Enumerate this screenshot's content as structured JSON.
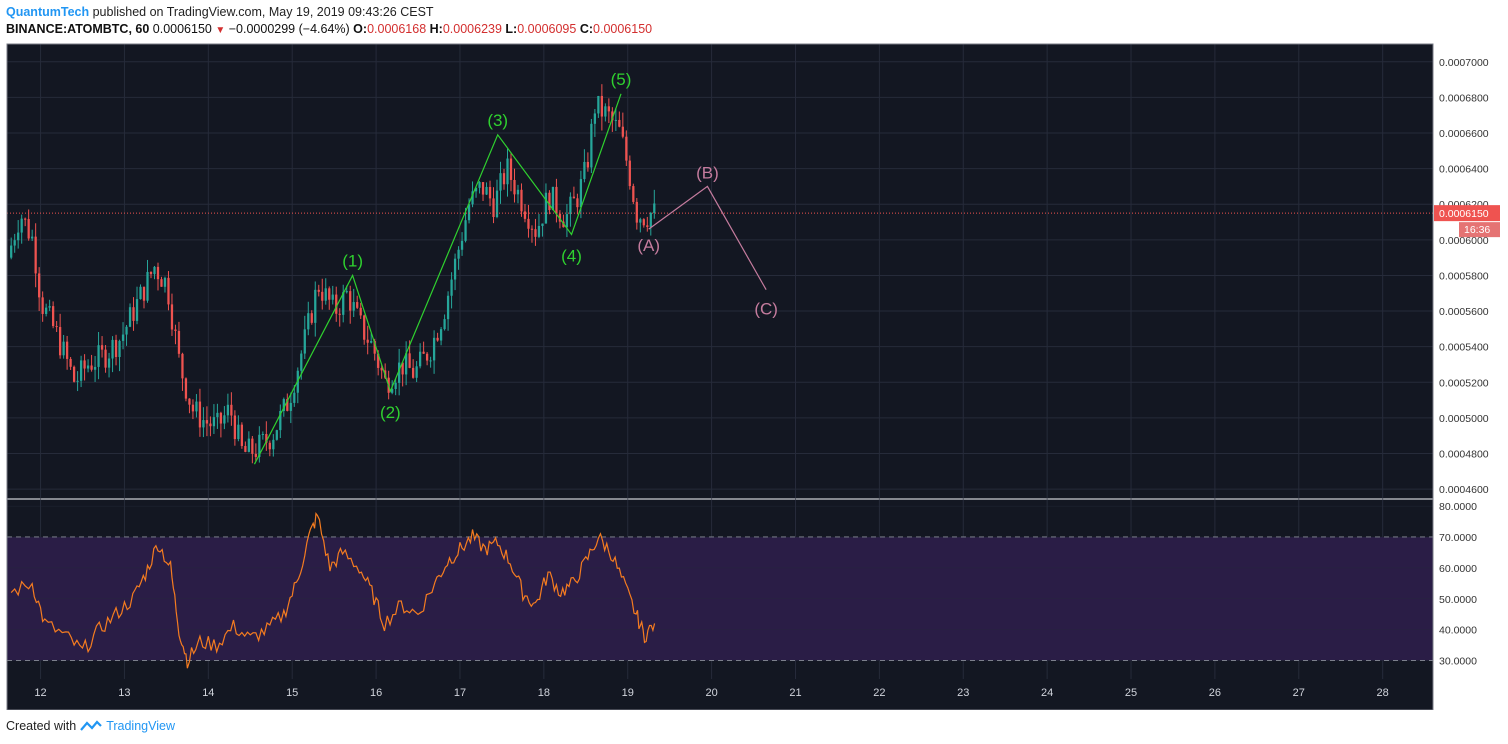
{
  "header": {
    "author": "QuantumTech",
    "published_text": "published on TradingView.com, May 19, 2019 09:43:26 CEST",
    "symbol": "BINANCE:ATOMBTC, 60",
    "last": "0.0006150",
    "change": "−0.0000299 (−4.64%)",
    "o_label": "O:",
    "o_value": "0.0006168",
    "h_label": "H:",
    "h_value": "0.0006239",
    "l_label": "L:",
    "l_value": "0.0006095",
    "c_label": "C:",
    "c_value": "0.0006150"
  },
  "footer": {
    "created_with": "Created with",
    "brand": "TradingView"
  },
  "colors": {
    "background": "#131722",
    "grid": "#262b3a",
    "up": "#26a69a",
    "down": "#ef5350",
    "wave": "#2fd12f",
    "correction": "#c57c9e",
    "rsi": "#f57c20",
    "rsi_band": "#2a1d46",
    "price_line": "#ef5350"
  },
  "chart_data": [
    {
      "type": "candlestick",
      "title": "BINANCE:ATOMBTC, 60",
      "x_axis": {
        "unit": "day (May 2019)",
        "range": [
          11.6,
          28.6
        ],
        "tick_labels": [
          "12",
          "13",
          "14",
          "15",
          "16",
          "17",
          "18",
          "19",
          "20",
          "21",
          "22",
          "23",
          "24",
          "25",
          "26",
          "27",
          "28"
        ]
      },
      "y_axis": {
        "range": [
          0.000455,
          0.00071
        ],
        "tick_labels": [
          "0.0007000",
          "0.0006800",
          "0.0006600",
          "0.0006400",
          "0.0006200",
          "0.0006000",
          "0.0005800",
          "0.0005600",
          "0.0005400",
          "0.0005200",
          "0.0005000",
          "0.0004800",
          "0.0004600"
        ]
      },
      "last_price": {
        "value": 0.000615,
        "label": "0.0006150",
        "countdown": "16:36"
      },
      "price_path_approx": [
        {
          "day": 11.65,
          "price": 0.00059
        },
        {
          "day": 11.8,
          "price": 0.000615
        },
        {
          "day": 11.95,
          "price": 0.0006
        },
        {
          "day": 12.05,
          "price": 0.000565
        },
        {
          "day": 12.25,
          "price": 0.000545
        },
        {
          "day": 12.45,
          "price": 0.00052
        },
        {
          "day": 12.6,
          "price": 0.00053
        },
        {
          "day": 12.8,
          "price": 0.000535
        },
        {
          "day": 13.0,
          "price": 0.000545
        },
        {
          "day": 13.2,
          "price": 0.000565
        },
        {
          "day": 13.4,
          "price": 0.000585
        },
        {
          "day": 13.55,
          "price": 0.000575
        },
        {
          "day": 13.7,
          "price": 0.00053
        },
        {
          "day": 13.85,
          "price": 0.000505
        },
        {
          "day": 14.0,
          "price": 0.000498
        },
        {
          "day": 14.15,
          "price": 0.000495
        },
        {
          "day": 14.3,
          "price": 0.000505
        },
        {
          "day": 14.45,
          "price": 0.00048
        },
        {
          "day": 14.6,
          "price": 0.000482
        },
        {
          "day": 14.8,
          "price": 0.00049
        },
        {
          "day": 15.0,
          "price": 0.00051
        },
        {
          "day": 15.2,
          "price": 0.000545
        },
        {
          "day": 15.35,
          "price": 0.000575
        },
        {
          "day": 15.55,
          "price": 0.00056
        },
        {
          "day": 15.7,
          "price": 0.00057
        },
        {
          "day": 15.85,
          "price": 0.000552
        },
        {
          "day": 16.0,
          "price": 0.00054
        },
        {
          "day": 16.15,
          "price": 0.00052
        },
        {
          "day": 16.35,
          "price": 0.00053
        },
        {
          "day": 16.5,
          "price": 0.000525
        },
        {
          "day": 16.7,
          "price": 0.00054
        },
        {
          "day": 16.85,
          "price": 0.00056
        },
        {
          "day": 17.0,
          "price": 0.00059
        },
        {
          "day": 17.15,
          "price": 0.00062
        },
        {
          "day": 17.3,
          "price": 0.00063
        },
        {
          "day": 17.45,
          "price": 0.00062
        },
        {
          "day": 17.6,
          "price": 0.00064
        },
        {
          "day": 17.8,
          "price": 0.00062
        },
        {
          "day": 17.95,
          "price": 0.000605
        },
        {
          "day": 18.1,
          "price": 0.000625
        },
        {
          "day": 18.3,
          "price": 0.000612
        },
        {
          "day": 18.45,
          "price": 0.000625
        },
        {
          "day": 18.55,
          "price": 0.00064
        },
        {
          "day": 18.65,
          "price": 0.000675
        },
        {
          "day": 18.8,
          "price": 0.00067
        },
        {
          "day": 18.95,
          "price": 0.00066
        },
        {
          "day": 19.05,
          "price": 0.00064
        },
        {
          "day": 19.15,
          "price": 0.000615
        },
        {
          "day": 19.25,
          "price": 0.000613
        },
        {
          "day": 19.32,
          "price": 0.000615
        }
      ],
      "wave_labels": [
        {
          "label": "(1)",
          "day": 15.72,
          "price": 0.00058
        },
        {
          "label": "(2)",
          "day": 16.17,
          "price": 0.000515
        },
        {
          "label": "(3)",
          "day": 17.45,
          "price": 0.000659
        },
        {
          "label": "(4)",
          "day": 18.33,
          "price": 0.000603
        },
        {
          "label": "(5)",
          "day": 18.92,
          "price": 0.000682
        }
      ],
      "wave_line": [
        {
          "day": 14.55,
          "price": 0.000474
        },
        {
          "day": 15.72,
          "price": 0.00058
        },
        {
          "day": 16.17,
          "price": 0.000515
        },
        {
          "day": 17.45,
          "price": 0.000659
        },
        {
          "day": 18.33,
          "price": 0.000603
        },
        {
          "day": 18.92,
          "price": 0.000682
        }
      ],
      "correction_labels": [
        {
          "label": "(A)",
          "day": 19.25,
          "price": 0.000606
        },
        {
          "label": "(B)",
          "day": 19.95,
          "price": 0.00063
        },
        {
          "label": "(C)",
          "day": 20.65,
          "price": 0.000572
        }
      ],
      "correction_line": [
        {
          "day": 19.25,
          "price": 0.000606
        },
        {
          "day": 19.95,
          "price": 0.00063
        },
        {
          "day": 20.65,
          "price": 0.000572
        }
      ]
    },
    {
      "type": "line",
      "title": "RSI",
      "y_axis": {
        "range": [
          24,
          82
        ],
        "tick_labels": [
          "80.0000",
          "70.0000",
          "60.0000",
          "50.0000",
          "40.0000",
          "30.0000"
        ]
      },
      "band": [
        30,
        70
      ],
      "series": [
        {
          "values_approx": [
            {
              "day": 11.65,
              "value": 52
            },
            {
              "day": 11.9,
              "value": 55
            },
            {
              "day": 12.05,
              "value": 42
            },
            {
              "day": 12.3,
              "value": 38
            },
            {
              "day": 12.5,
              "value": 33
            },
            {
              "day": 12.7,
              "value": 40
            },
            {
              "day": 12.9,
              "value": 45
            },
            {
              "day": 13.1,
              "value": 50
            },
            {
              "day": 13.25,
              "value": 58
            },
            {
              "day": 13.4,
              "value": 68
            },
            {
              "day": 13.55,
              "value": 60
            },
            {
              "day": 13.65,
              "value": 40
            },
            {
              "day": 13.75,
              "value": 30
            },
            {
              "day": 13.9,
              "value": 36
            },
            {
              "day": 14.1,
              "value": 35
            },
            {
              "day": 14.3,
              "value": 41
            },
            {
              "day": 14.5,
              "value": 37
            },
            {
              "day": 14.7,
              "value": 40
            },
            {
              "day": 14.9,
              "value": 45
            },
            {
              "day": 15.05,
              "value": 55
            },
            {
              "day": 15.2,
              "value": 70
            },
            {
              "day": 15.3,
              "value": 77
            },
            {
              "day": 15.45,
              "value": 60
            },
            {
              "day": 15.6,
              "value": 65
            },
            {
              "day": 15.8,
              "value": 60
            },
            {
              "day": 15.95,
              "value": 52
            },
            {
              "day": 16.1,
              "value": 42
            },
            {
              "day": 16.3,
              "value": 48
            },
            {
              "day": 16.5,
              "value": 45
            },
            {
              "day": 16.7,
              "value": 55
            },
            {
              "day": 16.85,
              "value": 62
            },
            {
              "day": 17.0,
              "value": 66
            },
            {
              "day": 17.15,
              "value": 70
            },
            {
              "day": 17.3,
              "value": 66
            },
            {
              "day": 17.45,
              "value": 68
            },
            {
              "day": 17.6,
              "value": 62
            },
            {
              "day": 17.75,
              "value": 52
            },
            {
              "day": 17.9,
              "value": 48
            },
            {
              "day": 18.05,
              "value": 58
            },
            {
              "day": 18.2,
              "value": 52
            },
            {
              "day": 18.35,
              "value": 55
            },
            {
              "day": 18.5,
              "value": 62
            },
            {
              "day": 18.65,
              "value": 70
            },
            {
              "day": 18.8,
              "value": 65
            },
            {
              "day": 18.95,
              "value": 55
            },
            {
              "day": 19.1,
              "value": 45
            },
            {
              "day": 19.2,
              "value": 38
            },
            {
              "day": 19.32,
              "value": 42
            }
          ]
        }
      ]
    }
  ]
}
